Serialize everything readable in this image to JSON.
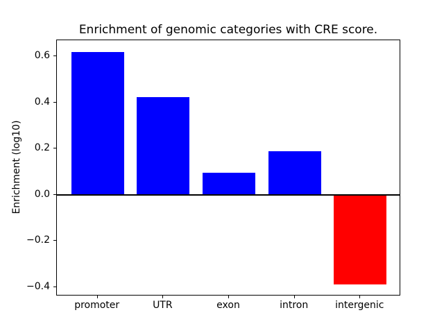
{
  "chart_data": {
    "type": "bar",
    "title": "Enrichment of genomic categories with CRE score.",
    "xlabel": "",
    "ylabel": "Enrichment (log10)",
    "categories": [
      "promoter",
      "UTR",
      "exon",
      "intron",
      "intergenic"
    ],
    "values": [
      0.62,
      0.425,
      0.095,
      0.19,
      -0.39
    ],
    "bar_colors": [
      "#0000ff",
      "#0000ff",
      "#0000ff",
      "#0000ff",
      "#ff0000"
    ],
    "positive_color": "#0000ff",
    "negative_color": "#ff0000",
    "bar_width_units": 0.8,
    "xlim": [
      -0.62,
      4.62
    ],
    "ylim": [
      -0.4405,
      0.6705
    ],
    "yticks": {
      "values": [
        0.6,
        0.4,
        0.2,
        0.0,
        -0.2,
        -0.4
      ],
      "labels": [
        "0.6",
        "0.4",
        "0.2",
        "0.0",
        "−0.2",
        "−0.4"
      ]
    },
    "grid": false,
    "legend": "none",
    "zero_line": true,
    "background_color": "#ffffff",
    "spine_color": "#000000"
  }
}
